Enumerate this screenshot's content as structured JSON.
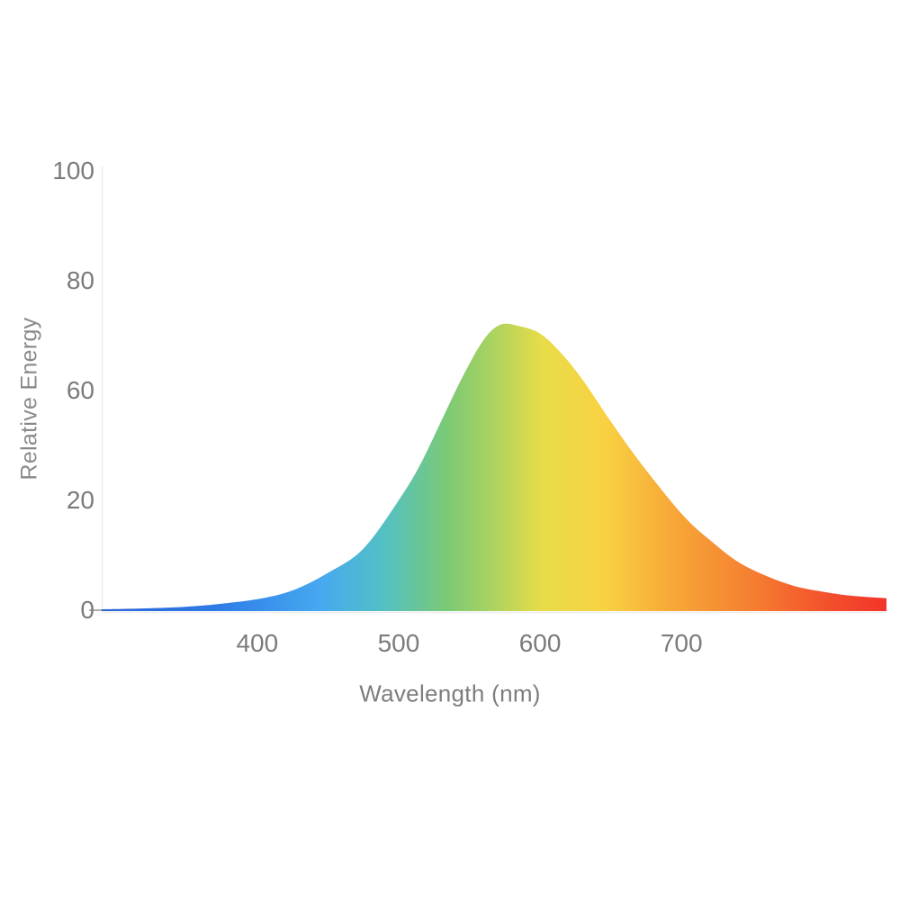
{
  "chart_data": {
    "type": "area",
    "title": "",
    "xlabel": "Wavelength (nm)",
    "ylabel": "Relative Energy",
    "x_tick_labels": [
      "400",
      "500",
      "600",
      "700"
    ],
    "x_tick_values": [
      400,
      500,
      600,
      700
    ],
    "y_tick_labels": [
      "100",
      "80",
      "60",
      "20",
      "0"
    ],
    "xlim": [
      290,
      845
    ],
    "ylim": [
      0,
      100
    ],
    "grid": false,
    "legend": false,
    "series": [
      {
        "x": [
          290,
          320,
          350,
          375,
          400,
          425,
          450,
          475,
          500,
          515,
          530,
          545,
          560,
          572,
          585,
          600,
          615,
          630,
          650,
          670,
          700,
          720,
          740,
          760,
          780,
          800,
          820,
          845
        ],
        "y": [
          0.2,
          0.4,
          0.8,
          1.5,
          2.5,
          4.5,
          8.5,
          14,
          25,
          33,
          43,
          53,
          61.5,
          65,
          64.7,
          63,
          58.5,
          52.5,
          43,
          34,
          22,
          16,
          11,
          7.8,
          5.5,
          4.2,
          3.3,
          2.7
        ]
      }
    ],
    "fill_gradient": [
      {
        "offset": 0.0,
        "color": "#2b63d4"
      },
      {
        "offset": 0.15,
        "color": "#2e7de7"
      },
      {
        "offset": 0.28,
        "color": "#47a9f0"
      },
      {
        "offset": 0.36,
        "color": "#53c0c3"
      },
      {
        "offset": 0.44,
        "color": "#7bca75"
      },
      {
        "offset": 0.5,
        "color": "#acd35f"
      },
      {
        "offset": 0.56,
        "color": "#e7dc49"
      },
      {
        "offset": 0.64,
        "color": "#f8d242"
      },
      {
        "offset": 0.72,
        "color": "#f7ab38"
      },
      {
        "offset": 0.83,
        "color": "#f57e31"
      },
      {
        "offset": 0.93,
        "color": "#f34e2c"
      },
      {
        "offset": 1.0,
        "color": "#f2342a"
      }
    ]
  },
  "style": {
    "background": "#ffffff",
    "tick_label_color": "#7b7b7b",
    "y_axis_title_color": "#8a8a8a",
    "x_axis_title_color": "#7d7d7d",
    "axis_line_color": "#ececec",
    "origin_tick_color": "#b0b0b0"
  }
}
